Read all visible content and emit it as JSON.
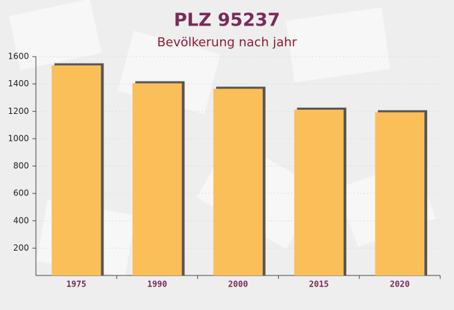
{
  "chart_data": {
    "type": "bar",
    "title": "PLZ 95237",
    "subtitle": "Bevölkerung nach jahr",
    "categories": [
      "1975",
      "1990",
      "2000",
      "2015",
      "2020"
    ],
    "values": [
      1536,
      1405,
      1365,
      1212,
      1193
    ],
    "color": "#fbbf5a",
    "ylim": [
      0,
      1600
    ],
    "yticks": [
      200,
      400,
      600,
      800,
      1000,
      1200,
      1400,
      1600
    ],
    "grid": true
  }
}
